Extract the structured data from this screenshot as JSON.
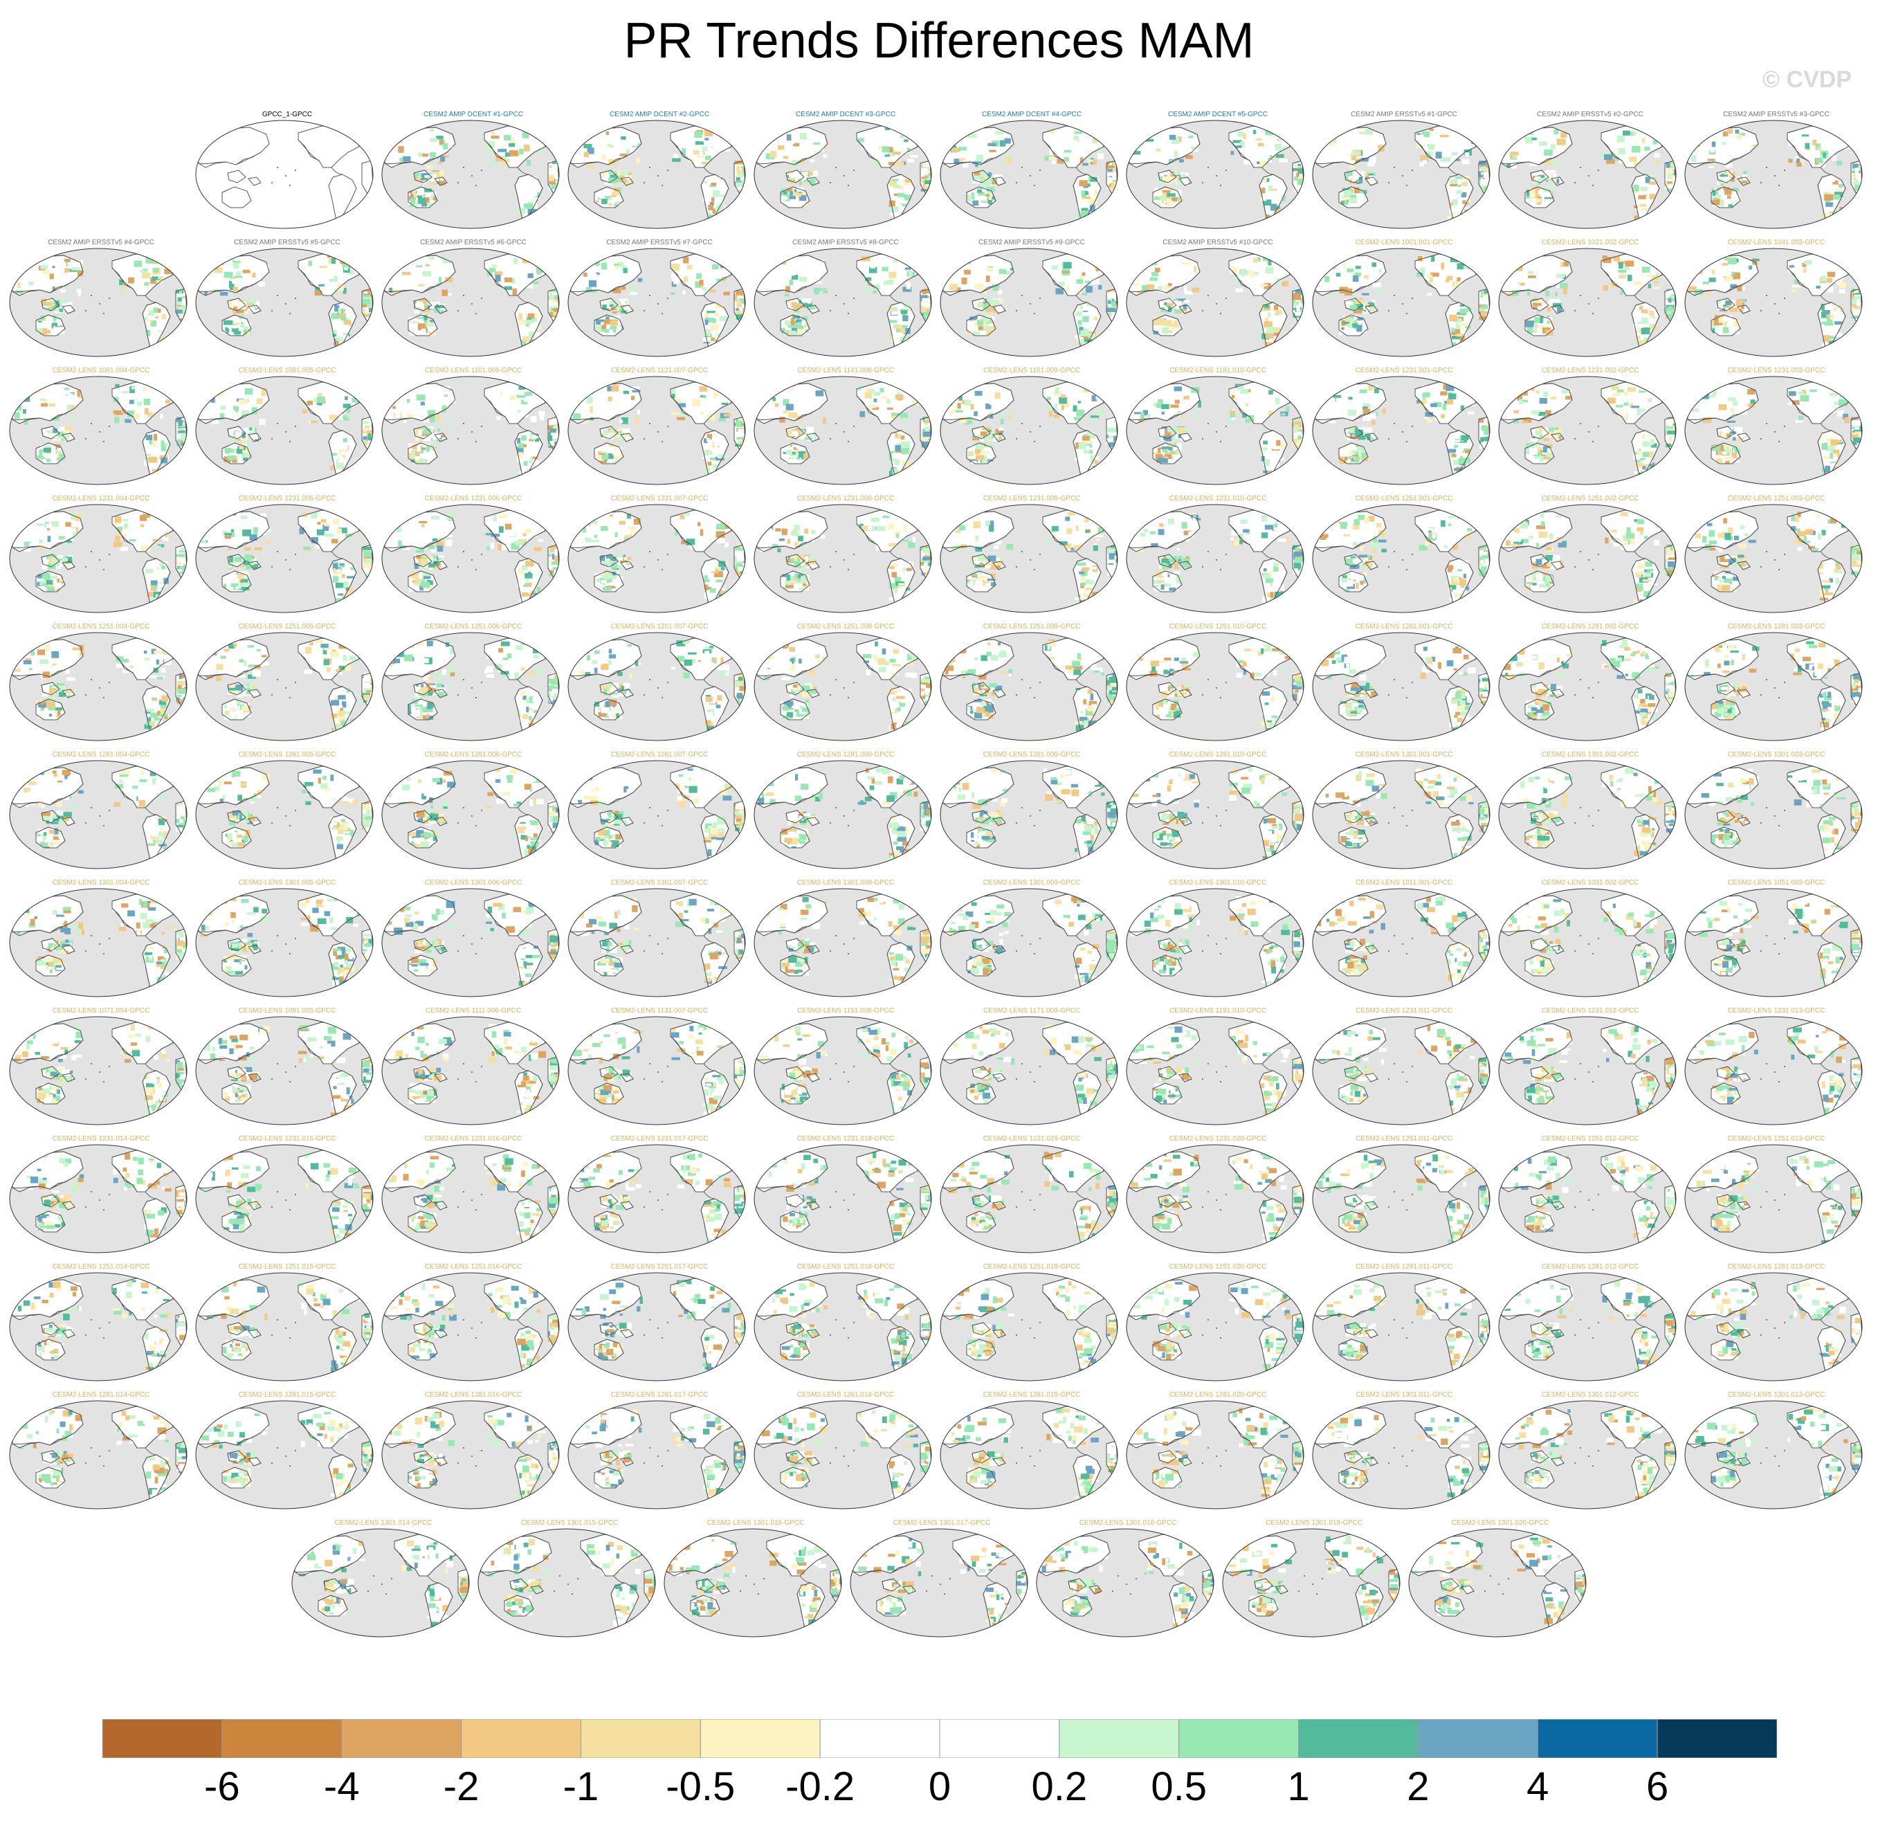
{
  "title": "PR Trends Differences MAM",
  "watermark": "© CVDP",
  "panel_rows": [
    [
      "GPCC_1-GPCC",
      "CESM2 AMIP DCENT #1-GPCC",
      "CESM2 AMIP DCENT #2-GPCC",
      "CESM2 AMIP DCENT #3-GPCC",
      "CESM2 AMIP DCENT #4-GPCC",
      "CESM2 AMIP DCENT #5-GPCC",
      "CESM2 AMIP ERSSTv5 #1-GPCC",
      "CESM2 AMIP ERSSTv5 #2-GPCC",
      "CESM2 AMIP ERSSTv5 #3-GPCC"
    ],
    [
      "CESM2 AMIP ERSSTv5 #4-GPCC",
      "CESM2 AMIP ERSSTv5 #5-GPCC",
      "CESM2 AMIP ERSSTv5 #6-GPCC",
      "CESM2 AMIP ERSSTv5 #7-GPCC",
      "CESM2 AMIP ERSSTv5 #8-GPCC",
      "CESM2 AMIP ERSSTv5 #9-GPCC",
      "CESM2 AMIP ERSSTv5 #10-GPCC",
      "CESM2-LENS 1001.001-GPCC",
      "CESM2-LENS 1021.002-GPCC",
      "CESM2-LENS 1041.003-GPCC"
    ],
    [
      "CESM2-LENS 1061.004-GPCC",
      "CESM2-LENS 1081.005-GPCC",
      "CESM2-LENS 1101.006-GPCC",
      "CESM2-LENS 1121.007-GPCC",
      "CESM2-LENS 1141.008-GPCC",
      "CESM2-LENS 1161.009-GPCC",
      "CESM2-LENS 1181.010-GPCC",
      "CESM2-LENS 1231.001-GPCC",
      "CESM2-LENS 1231.002-GPCC",
      "CESM2-LENS 1231.003-GPCC"
    ],
    [
      "CESM2-LENS 1231.004-GPCC",
      "CESM2-LENS 1231.005-GPCC",
      "CESM2-LENS 1231.006-GPCC",
      "CESM2-LENS 1231.007-GPCC",
      "CESM2-LENS 1231.008-GPCC",
      "CESM2-LENS 1231.009-GPCC",
      "CESM2-LENS 1231.010-GPCC",
      "CESM2-LENS 1251.001-GPCC",
      "CESM2-LENS 1251.002-GPCC",
      "CESM2-LENS 1251.003-GPCC"
    ],
    [
      "CESM2-LENS 1251.004-GPCC",
      "CESM2-LENS 1251.005-GPCC",
      "CESM2-LENS 1251.006-GPCC",
      "CESM2-LENS 1251.007-GPCC",
      "CESM2-LENS 1251.008-GPCC",
      "CESM2-LENS 1251.009-GPCC",
      "CESM2-LENS 1251.010-GPCC",
      "CESM2-LENS 1281.001-GPCC",
      "CESM2-LENS 1281.002-GPCC",
      "CESM2-LENS 1281.003-GPCC"
    ],
    [
      "CESM2-LENS 1281.004-GPCC",
      "CESM2-LENS 1281.005-GPCC",
      "CESM2-LENS 1281.006-GPCC",
      "CESM2-LENS 1281.007-GPCC",
      "CESM2-LENS 1281.008-GPCC",
      "CESM2-LENS 1281.009-GPCC",
      "CESM2-LENS 1281.010-GPCC",
      "CESM2-LENS 1301.001-GPCC",
      "CESM2-LENS 1301.002-GPCC",
      "CESM2-LENS 1301.003-GPCC"
    ],
    [
      "CESM2-LENS 1301.004-GPCC",
      "CESM2-LENS 1301.005-GPCC",
      "CESM2-LENS 1301.006-GPCC",
      "CESM2-LENS 1301.007-GPCC",
      "CESM2-LENS 1301.008-GPCC",
      "CESM2-LENS 1301.009-GPCC",
      "CESM2-LENS 1301.010-GPCC",
      "CESM2-LENS 1011.001-GPCC",
      "CESM2-LENS 1031.002-GPCC",
      "CESM2-LENS 1051.003-GPCC"
    ],
    [
      "CESM2-LENS 1071.004-GPCC",
      "CESM2-LENS 1091.005-GPCC",
      "CESM2-LENS 1111.006-GPCC",
      "CESM2-LENS 1131.007-GPCC",
      "CESM2-LENS 1151.008-GPCC",
      "CESM2-LENS 1171.009-GPCC",
      "CESM2-LENS 1191.010-GPCC",
      "CESM2-LENS 1231.011-GPCC",
      "CESM2-LENS 1231.012-GPCC",
      "CESM2-LENS 1231.013-GPCC"
    ],
    [
      "CESM2-LENS 1231.014-GPCC",
      "CESM2-LENS 1231.015-GPCC",
      "CESM2-LENS 1231.016-GPCC",
      "CESM2-LENS 1231.017-GPCC",
      "CESM2-LENS 1231.018-GPCC",
      "CESM2-LENS 1231.019-GPCC",
      "CESM2-LENS 1231.020-GPCC",
      "CESM2-LENS 1251.011-GPCC",
      "CESM2-LENS 1251.012-GPCC",
      "CESM2-LENS 1251.013-GPCC"
    ],
    [
      "CESM2-LENS 1251.014-GPCC",
      "CESM2-LENS 1251.015-GPCC",
      "CESM2-LENS 1251.016-GPCC",
      "CESM2-LENS 1251.017-GPCC",
      "CESM2-LENS 1251.018-GPCC",
      "CESM2-LENS 1251.019-GPCC",
      "CESM2-LENS 1251.020-GPCC",
      "CESM2-LENS 1281.011-GPCC",
      "CESM2-LENS 1281.012-GPCC",
      "CESM2-LENS 1281.013-GPCC"
    ],
    [
      "CESM2-LENS 1281.014-GPCC",
      "CESM2-LENS 1281.015-GPCC",
      "CESM2-LENS 1281.016-GPCC",
      "CESM2-LENS 1281.017-GPCC",
      "CESM2-LENS 1281.018-GPCC",
      "CESM2-LENS 1281.019-GPCC",
      "CESM2-LENS 1281.020-GPCC",
      "CESM2-LENS 1301.011-GPCC",
      "CESM2-LENS 1301.012-GPCC",
      "CESM2-LENS 1301.013-GPCC"
    ],
    [
      "CESM2-LENS 1301.014-GPCC",
      "CESM2-LENS 1301.015-GPCC",
      "CESM2-LENS 1301.016-GPCC",
      "CESM2-LENS 1301.017-GPCC",
      "CESM2-LENS 1301.018-GPCC",
      "CESM2-LENS 1301.019-GPCC",
      "CESM2-LENS 1301.020-GPCC"
    ]
  ],
  "colorbar": {
    "colors": [
      "#b5682c",
      "#cc853d",
      "#dea462",
      "#f2c882",
      "#f5e0a0",
      "#fdf3c0",
      "#ffffff",
      "#ffffff",
      "#c7f5cd",
      "#98e8b4",
      "#52bb9c",
      "#6aa6c4",
      "#0a68a3",
      "#053a58"
    ],
    "labels": [
      "-6",
      "-4",
      "-2",
      "-1",
      "-0.5",
      "-0.2",
      "0",
      "0.2",
      "0.5",
      "1",
      "2",
      "4",
      "6"
    ]
  }
}
